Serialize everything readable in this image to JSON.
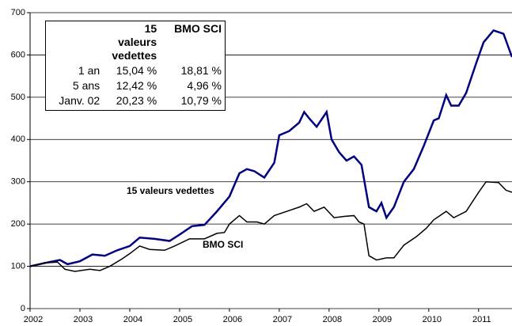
{
  "chart_data": {
    "type": "line",
    "xlim": [
      2002,
      2011.67
    ],
    "xticks": [
      2002,
      2003,
      2004,
      2005,
      2006,
      2007,
      2008,
      2009,
      2010,
      2011
    ],
    "ylim": [
      0,
      700
    ],
    "yticks": [
      0,
      100,
      200,
      300,
      400,
      500,
      600,
      700
    ],
    "grid": true,
    "annotations": [
      "15 valeurs vedettes",
      "BMO SCI"
    ],
    "series": [
      {
        "name": "15 valeurs vedettes",
        "color": "#000080",
        "x": [
          2002.0,
          2002.3,
          2002.6,
          2002.75,
          2003.0,
          2003.25,
          2003.5,
          2003.75,
          2004.0,
          2004.2,
          2004.5,
          2004.8,
          2005.0,
          2005.25,
          2005.5,
          2005.75,
          2006.0,
          2006.2,
          2006.35,
          2006.5,
          2006.7,
          2006.9,
          2007.0,
          2007.2,
          2007.4,
          2007.5,
          2007.6,
          2007.75,
          2007.95,
          2008.05,
          2008.2,
          2008.35,
          2008.5,
          2008.65,
          2008.8,
          2008.95,
          2009.05,
          2009.15,
          2009.3,
          2009.5,
          2009.7,
          2009.9,
          2010.1,
          2010.2,
          2010.35,
          2010.45,
          2010.6,
          2010.75,
          2010.95,
          2011.1,
          2011.3,
          2011.5,
          2011.67
        ],
        "values": [
          100,
          108,
          115,
          105,
          112,
          128,
          125,
          138,
          148,
          168,
          165,
          160,
          175,
          195,
          198,
          230,
          265,
          320,
          330,
          325,
          310,
          345,
          410,
          420,
          440,
          465,
          450,
          430,
          465,
          400,
          370,
          350,
          360,
          340,
          240,
          230,
          250,
          215,
          240,
          300,
          330,
          385,
          445,
          450,
          505,
          480,
          480,
          510,
          580,
          630,
          658,
          650,
          595
        ]
      },
      {
        "name": "BMO SCI",
        "color": "#000000",
        "x": [
          2002.0,
          2002.3,
          2002.55,
          2002.7,
          2002.9,
          2003.2,
          2003.4,
          2003.6,
          2003.85,
          2004.0,
          2004.2,
          2004.4,
          2004.7,
          2004.9,
          2005.2,
          2005.5,
          2005.75,
          2005.9,
          2006.0,
          2006.2,
          2006.35,
          2006.55,
          2006.7,
          2006.9,
          2007.2,
          2007.4,
          2007.55,
          2007.7,
          2007.9,
          2008.1,
          2008.3,
          2008.5,
          2008.6,
          2008.7,
          2008.8,
          2008.95,
          2009.15,
          2009.3,
          2009.5,
          2009.75,
          2009.95,
          2010.1,
          2010.35,
          2010.5,
          2010.75,
          2011.0,
          2011.15,
          2011.4,
          2011.55,
          2011.67
        ],
        "values": [
          100,
          108,
          110,
          93,
          88,
          93,
          90,
          100,
          118,
          130,
          148,
          140,
          138,
          148,
          165,
          165,
          178,
          180,
          200,
          220,
          205,
          205,
          200,
          220,
          232,
          240,
          248,
          230,
          240,
          215,
          218,
          220,
          205,
          200,
          125,
          115,
          120,
          120,
          150,
          170,
          190,
          210,
          230,
          215,
          230,
          275,
          300,
          298,
          280,
          275
        ]
      }
    ]
  },
  "table": {
    "header": [
      "",
      "15 valeurs vedettes",
      "BMO SCI"
    ],
    "rows": [
      [
        "1 an",
        "15,04 %",
        "18,81 %"
      ],
      [
        "5 ans",
        "12,42 %",
        "4,96 %"
      ],
      [
        "Janv. 02",
        "20,23 %",
        "10,79 %"
      ]
    ]
  }
}
